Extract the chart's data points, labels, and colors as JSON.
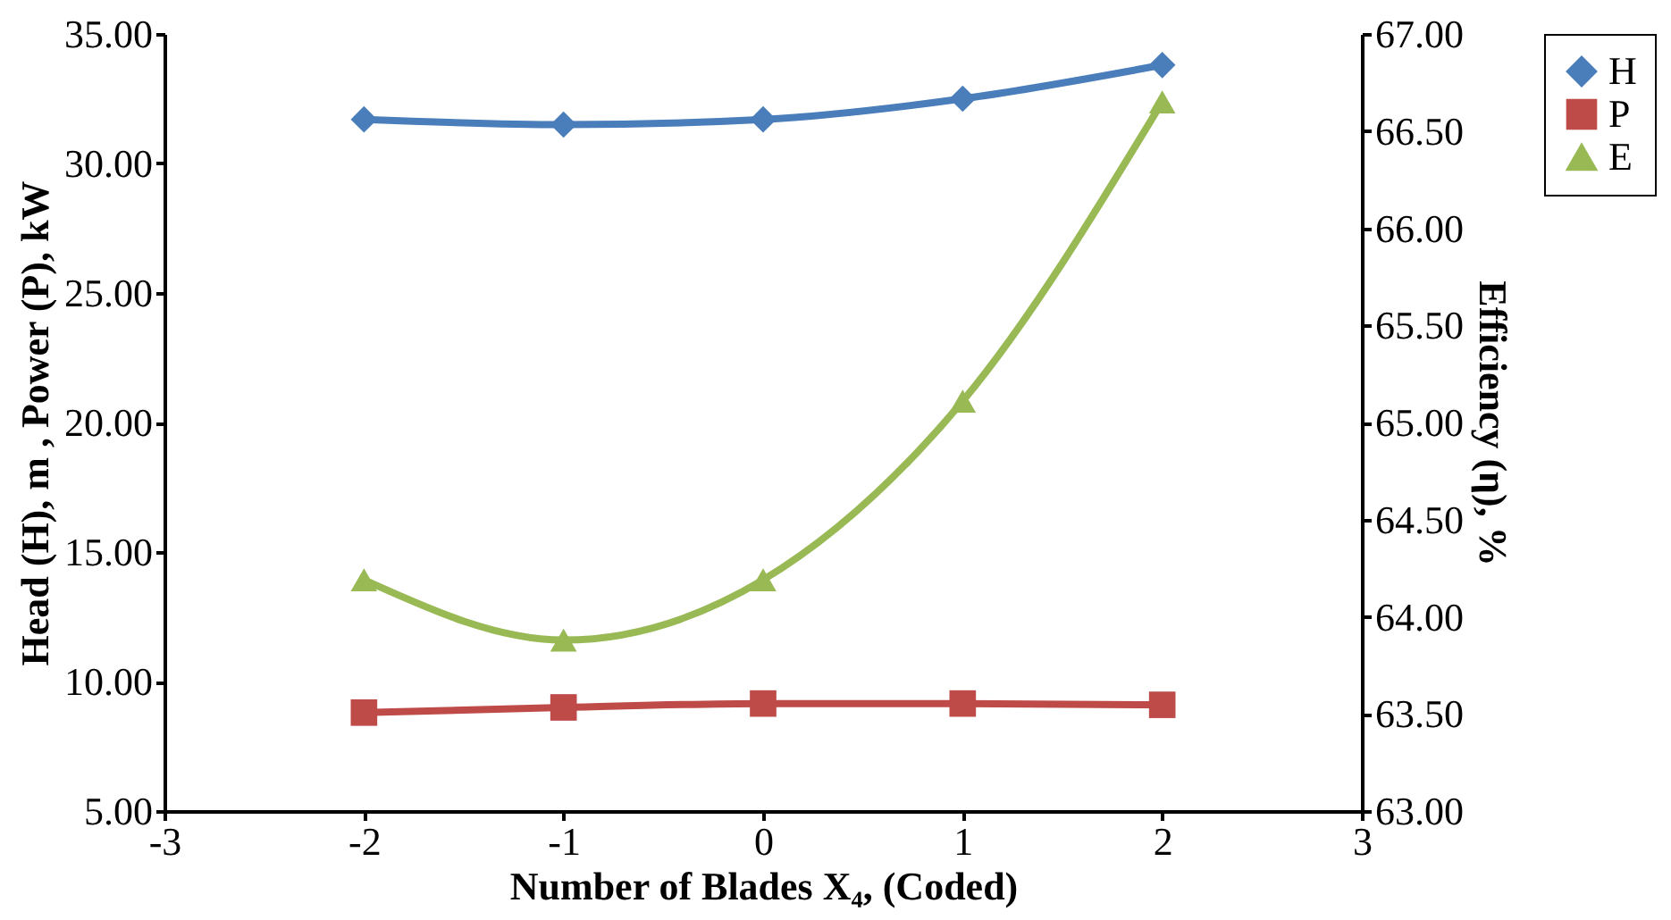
{
  "chart_data": {
    "type": "line",
    "xlabel": "Number of Blades X₄, (Coded)",
    "ylabel": "Head (H), m , Power (P), kW",
    "y2label": "Efficiency (η), %",
    "x": [
      -2,
      -1,
      0,
      1,
      2
    ],
    "series": [
      {
        "name": "H",
        "color": "#4a7ebb",
        "marker": "diamond",
        "values": [
          31.7,
          31.5,
          31.7,
          32.5,
          33.8
        ]
      },
      {
        "name": "P",
        "color": "#be4b48",
        "marker": "square",
        "values": [
          8.8,
          9.0,
          9.15,
          9.15,
          9.1
        ]
      },
      {
        "name": "E",
        "color": "#98b954",
        "marker": "triangle",
        "axis": "y2",
        "values": [
          64.19,
          63.88,
          64.19,
          65.11,
          66.65
        ]
      }
    ],
    "xlim": [
      -3,
      3
    ],
    "xticks": [
      -3,
      -2,
      -1,
      0,
      1,
      2,
      3
    ],
    "ylim": [
      5,
      35
    ],
    "yticks": [
      {
        "value": 5,
        "label": "5.00"
      },
      {
        "value": 10,
        "label": "10.00"
      },
      {
        "value": 15,
        "label": "15.00"
      },
      {
        "value": 20,
        "label": "20.00"
      },
      {
        "value": 25,
        "label": "25.00"
      },
      {
        "value": 30,
        "label": "30.00"
      },
      {
        "value": 35,
        "label": "35.00"
      }
    ],
    "y2lim": [
      63,
      67
    ],
    "y2ticks": [
      {
        "value": 63,
        "label": "63.00"
      },
      {
        "value": 63.5,
        "label": "63.50"
      },
      {
        "value": 64,
        "label": "64.00"
      },
      {
        "value": 64.5,
        "label": "64.50"
      },
      {
        "value": 65,
        "label": "65.00"
      },
      {
        "value": 65.5,
        "label": "65.50"
      },
      {
        "value": 66,
        "label": "66.00"
      },
      {
        "value": 66.5,
        "label": "66.50"
      },
      {
        "value": 67,
        "label": "67.00"
      }
    ],
    "grid": false,
    "legend": "right",
    "line_style": "solid"
  }
}
